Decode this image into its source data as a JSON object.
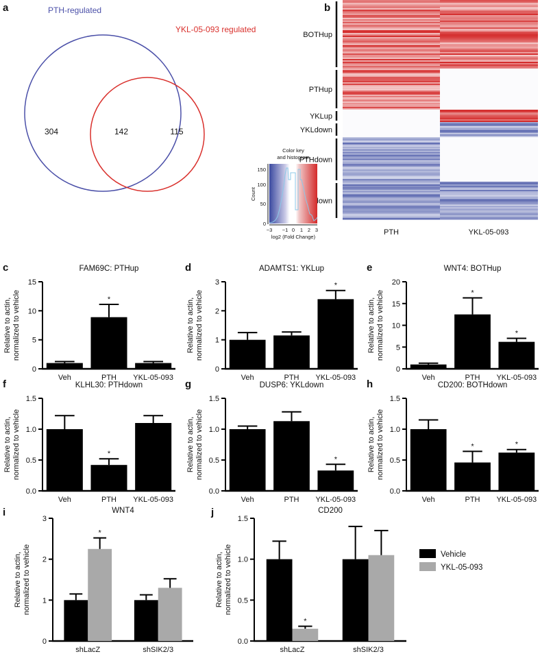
{
  "venn": {
    "panel": "a",
    "set_a_label": "PTH-regulated",
    "set_b_label": "YKL-05-093 regulated",
    "only_a": "304",
    "both": "142",
    "only_b": "115",
    "color_a": "#4a4fa8",
    "color_b": "#d9302c"
  },
  "heatmap": {
    "panel": "b",
    "columns": [
      "PTH",
      "YKL-05-093"
    ],
    "groups": [
      {
        "label": "BOTHup",
        "pth": "up",
        "ykl": "up",
        "rows": 100
      },
      {
        "label": "PTHup",
        "pth": "up",
        "ykl": "none",
        "rows": 60
      },
      {
        "label": "YKLup",
        "pth": "none",
        "ykl": "up",
        "rows": 18
      },
      {
        "label": "YKLdown",
        "pth": "none",
        "ykl": "down",
        "rows": 22
      },
      {
        "label": "PTHdown",
        "pth": "down",
        "ykl": "none",
        "rows": 65
      },
      {
        "label": "BOTHdown",
        "pth": "down",
        "ykl": "down",
        "rows": 55
      }
    ],
    "color_key": {
      "title_line1": "Color key",
      "title_line2": "and histogram",
      "ylabel": "Count",
      "xlabel": "log2 (Fold Change)",
      "yticks": [
        "0",
        "50",
        "100",
        "150"
      ],
      "xticks": [
        "−3",
        "−1",
        "0",
        "1",
        "2",
        "3"
      ],
      "low_color": "#3b4aa0",
      "high_color": "#d42a2a"
    }
  },
  "chart_data": [
    {
      "panel": "c",
      "type": "bar",
      "title": "FAM69C: PTHup",
      "ylabel": [
        "Relative to actin,",
        "normalized to vehicle"
      ],
      "categories": [
        "Veh",
        "PTH",
        "YKL-05-093"
      ],
      "values": [
        1.0,
        8.9,
        1.0
      ],
      "errors": [
        0.25,
        2.2,
        0.25
      ],
      "significant": [
        false,
        true,
        false
      ],
      "ylim": [
        0,
        15
      ],
      "yticks": [
        0,
        5,
        10,
        15
      ],
      "ytick_labels": [
        "0",
        "5",
        "10",
        "15"
      ]
    },
    {
      "panel": "d",
      "type": "bar",
      "title": "ADAMTS1: YKLup",
      "ylabel": [
        "Relative to actin,",
        "normalized to vehicle"
      ],
      "categories": [
        "Veh",
        "PTH",
        "YKL-05-093"
      ],
      "values": [
        1.0,
        1.15,
        2.4
      ],
      "errors": [
        0.25,
        0.12,
        0.3
      ],
      "significant": [
        false,
        false,
        true
      ],
      "ylim": [
        0,
        3
      ],
      "yticks": [
        0,
        1,
        2,
        3
      ],
      "ytick_labels": [
        "0",
        "1",
        "2",
        "3"
      ]
    },
    {
      "panel": "e",
      "type": "bar",
      "title": "WNT4: BOTHup",
      "ylabel": [
        "Relative to actin,",
        "normalized to vehicle"
      ],
      "categories": [
        "Veh",
        "PTH",
        "YKL-05-093"
      ],
      "values": [
        1.0,
        12.5,
        6.2
      ],
      "errors": [
        0.3,
        3.8,
        0.8
      ],
      "significant": [
        false,
        true,
        true
      ],
      "ylim": [
        0,
        20
      ],
      "yticks": [
        0,
        5,
        10,
        15,
        20
      ],
      "ytick_labels": [
        "0",
        "5",
        "10",
        "15",
        "20"
      ]
    },
    {
      "panel": "f",
      "type": "bar",
      "title": "KLHL30: PTHdown",
      "ylabel": [
        "Relative to actin,",
        "normalized to vehicle"
      ],
      "categories": [
        "Veh",
        "PTH",
        "YKL-05-093"
      ],
      "values": [
        1.0,
        0.42,
        1.1
      ],
      "errors": [
        0.22,
        0.1,
        0.12
      ],
      "significant": [
        false,
        true,
        false
      ],
      "ylim": [
        0,
        1.5
      ],
      "yticks": [
        0,
        0.5,
        1.0,
        1.5
      ],
      "ytick_labels": [
        "0.0",
        "0.5",
        "1.0",
        "1.5"
      ]
    },
    {
      "panel": "g",
      "type": "bar",
      "title": "DUSP6: YKLdown",
      "ylabel": [
        "Relative to actin,",
        "normalized to vehicle"
      ],
      "categories": [
        "Veh",
        "PTH",
        "YKL-05-093"
      ],
      "values": [
        1.0,
        1.13,
        0.33
      ],
      "errors": [
        0.05,
        0.15,
        0.1
      ],
      "significant": [
        false,
        false,
        true
      ],
      "ylim": [
        0,
        1.5
      ],
      "yticks": [
        0,
        0.5,
        1.0,
        1.5
      ],
      "ytick_labels": [
        "0.0",
        "0.5",
        "1.0",
        "1.5"
      ]
    },
    {
      "panel": "h",
      "type": "bar",
      "title": "CD200: BOTHdown",
      "ylabel": [
        "Relative to actin,",
        "normalized to vehicle"
      ],
      "categories": [
        "Veh",
        "PTH",
        "YKL-05-093"
      ],
      "values": [
        1.0,
        0.46,
        0.62
      ],
      "errors": [
        0.15,
        0.18,
        0.05
      ],
      "significant": [
        false,
        true,
        true
      ],
      "ylim": [
        0,
        1.5
      ],
      "yticks": [
        0,
        0.5,
        1.0,
        1.5
      ],
      "ytick_labels": [
        "0.0",
        "0.5",
        "1.0",
        "1.5"
      ]
    },
    {
      "panel": "i",
      "type": "grouped-bar",
      "title": "WNT4",
      "ylabel": [
        "Relative to actin,",
        "normalized to vehicle"
      ],
      "categories": [
        "shLacZ",
        "shSIK2/3"
      ],
      "series": [
        {
          "name": "Vehicle",
          "color": "#000000",
          "values": [
            1.0,
            1.0
          ],
          "errors": [
            0.15,
            0.13
          ],
          "significant": [
            false,
            false
          ]
        },
        {
          "name": "YKL-05-093",
          "color": "#a9a9a9",
          "values": [
            2.25,
            1.3
          ],
          "errors": [
            0.27,
            0.22
          ],
          "significant": [
            true,
            false
          ]
        }
      ],
      "ylim": [
        0,
        3
      ],
      "yticks": [
        0,
        1,
        2,
        3
      ],
      "ytick_labels": [
        "0",
        "1",
        "2",
        "3"
      ]
    },
    {
      "panel": "j",
      "type": "grouped-bar",
      "title": "CD200",
      "ylabel": [
        "Relative to actin,",
        "normalized to vehicle"
      ],
      "categories": [
        "shLacZ",
        "shSIK2/3"
      ],
      "series": [
        {
          "name": "Vehicle",
          "color": "#000000",
          "values": [
            1.0,
            1.0
          ],
          "errors": [
            0.22,
            0.4
          ],
          "significant": [
            false,
            false
          ]
        },
        {
          "name": "YKL-05-093",
          "color": "#a9a9a9",
          "values": [
            0.15,
            1.05
          ],
          "errors": [
            0.03,
            0.3
          ],
          "significant": [
            true,
            false
          ]
        }
      ],
      "ylim": [
        0,
        1.5
      ],
      "yticks": [
        0,
        0.5,
        1.0,
        1.5
      ],
      "ytick_labels": [
        "0.0",
        "0.5",
        "1.0",
        "1.5"
      ],
      "legend": {
        "placement": "right",
        "entries": [
          "Vehicle",
          "YKL-05-093"
        ]
      }
    }
  ],
  "significance_marker": "*"
}
